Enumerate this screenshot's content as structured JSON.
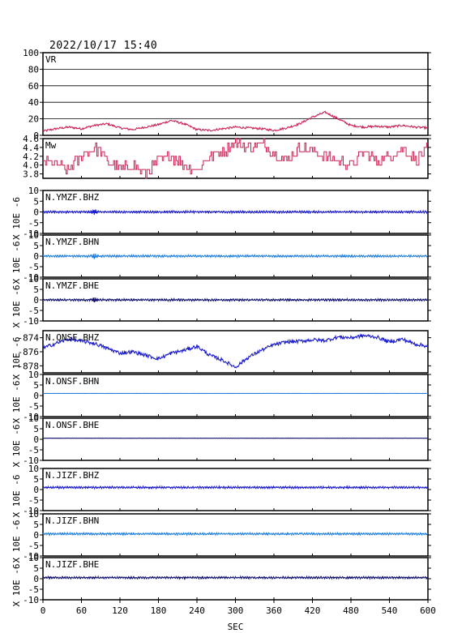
{
  "timestamp": "2022/10/17  15:40",
  "xlabel": "SEC",
  "ylabel_unit": "X 10E -6",
  "colors": {
    "vr": "#cc2255",
    "mw": "#cc2255",
    "bhz": "#1a1acc",
    "bhn": "#2080e0",
    "bhe": "#101070"
  },
  "chart_data": [
    {
      "type": "line",
      "panel": "VR",
      "title": "VR",
      "ylim": [
        0,
        100
      ],
      "yticks": [
        "100",
        "80",
        "60",
        "40",
        "20",
        "0"
      ],
      "grid": true,
      "x": [
        0,
        20,
        40,
        60,
        80,
        100,
        120,
        140,
        160,
        180,
        200,
        220,
        240,
        260,
        280,
        300,
        320,
        340,
        360,
        380,
        400,
        420,
        440,
        460,
        480,
        500,
        520,
        540,
        560,
        580,
        600
      ],
      "y": [
        5,
        8,
        10,
        8,
        12,
        14,
        9,
        7,
        10,
        13,
        18,
        14,
        7,
        6,
        8,
        10,
        9,
        8,
        6,
        9,
        14,
        22,
        28,
        20,
        12,
        10,
        11,
        10,
        12,
        10,
        9
      ]
    },
    {
      "type": "line",
      "panel": "Mw",
      "title": "Mw",
      "ylim": [
        3.7,
        4.6
      ],
      "yticks": [
        "4.6",
        "4.4",
        "4.2",
        "4.0",
        "3.8"
      ],
      "x": [
        0,
        20,
        40,
        60,
        80,
        100,
        120,
        140,
        160,
        180,
        200,
        220,
        240,
        260,
        280,
        300,
        320,
        340,
        360,
        380,
        400,
        420,
        440,
        460,
        480,
        500,
        520,
        540,
        560,
        580,
        600
      ],
      "y": [
        4.1,
        4.0,
        3.9,
        4.2,
        4.4,
        4.1,
        3.9,
        4.0,
        3.8,
        4.1,
        4.2,
        4.0,
        3.9,
        4.2,
        4.3,
        4.5,
        4.4,
        4.5,
        4.3,
        4.1,
        4.4,
        4.3,
        4.2,
        4.1,
        4.0,
        4.3,
        4.1,
        4.2,
        4.4,
        4.1,
        4.4
      ]
    },
    {
      "type": "line",
      "panel": "trace",
      "title": "N.YMZF.BHZ",
      "ylim": [
        -10,
        10
      ],
      "yticks": [
        "10",
        "5",
        "0",
        "-5",
        "-10"
      ],
      "color": "bhz",
      "amp": 0.5,
      "burst_x": 80
    },
    {
      "type": "line",
      "panel": "trace",
      "title": "N.YMZF.BHN",
      "ylim": [
        -10,
        10
      ],
      "yticks": [
        "10",
        "5",
        "0",
        "-5",
        "-10"
      ],
      "color": "bhn",
      "amp": 0.5,
      "burst_x": 80
    },
    {
      "type": "line",
      "panel": "trace",
      "title": "N.YMZF.BHE",
      "ylim": [
        -10,
        10
      ],
      "yticks": [
        "10",
        "5",
        "0",
        "-5",
        "-10"
      ],
      "color": "bhe",
      "amp": 0.5,
      "burst_x": 80
    },
    {
      "type": "line",
      "panel": "trace",
      "title": "N.ONSF.BHZ",
      "ylim": [
        -879,
        -873
      ],
      "yticks": [
        "-874",
        "-876",
        "-878"
      ],
      "ytick_values": [
        -874,
        -876,
        -878
      ],
      "color": "bhz",
      "x": [
        0,
        20,
        40,
        60,
        80,
        100,
        120,
        140,
        160,
        180,
        200,
        220,
        240,
        260,
        280,
        300,
        320,
        340,
        360,
        380,
        400,
        420,
        440,
        460,
        480,
        500,
        520,
        540,
        560,
        580,
        600
      ],
      "y": [
        -875.5,
        -874.8,
        -874.2,
        -874.5,
        -874.8,
        -875.5,
        -876.2,
        -876.0,
        -876.5,
        -877.0,
        -876.2,
        -875.8,
        -875.2,
        -876.5,
        -877.2,
        -878.2,
        -876.8,
        -875.8,
        -875.0,
        -874.6,
        -874.5,
        -874.3,
        -874.4,
        -873.9,
        -874.0,
        -873.7,
        -873.9,
        -874.6,
        -874.2,
        -874.9,
        -875.2
      ],
      "amp": 0.5
    },
    {
      "type": "line",
      "panel": "trace",
      "title": "N.ONSF.BHN",
      "ylim": [
        -10,
        10
      ],
      "yticks": [
        "10",
        "5",
        "0",
        "-5",
        "-10"
      ],
      "color": "bhn",
      "amp": 0.05,
      "offset": 1
    },
    {
      "type": "line",
      "panel": "trace",
      "title": "N.ONSF.BHE",
      "ylim": [
        -10,
        10
      ],
      "yticks": [
        "10",
        "5",
        "0",
        "-5",
        "-10"
      ],
      "color": "bhe",
      "amp": 0.05,
      "offset": 0.5
    },
    {
      "type": "line",
      "panel": "trace",
      "title": "N.JIZF.BHZ",
      "ylim": [
        -10,
        10
      ],
      "yticks": [
        "10",
        "5",
        "0",
        "-5",
        "-10"
      ],
      "color": "bhz",
      "amp": 0.5,
      "offset": 1
    },
    {
      "type": "line",
      "panel": "trace",
      "title": "N.JIZF.BHN",
      "ylim": [
        -10,
        10
      ],
      "yticks": [
        "10",
        "5",
        "0",
        "-5",
        "-10"
      ],
      "color": "bhn",
      "amp": 0.5,
      "offset": 0.5
    },
    {
      "type": "line",
      "panel": "trace",
      "title": "N.JIZF.BHE",
      "ylim": [
        -10,
        10
      ],
      "yticks": [
        "10",
        "5",
        "0",
        "-5",
        "-10"
      ],
      "color": "bhe",
      "amp": 0.5,
      "offset": 0.5
    }
  ],
  "xaxis": {
    "xlim": [
      0,
      600
    ],
    "ticks": [
      "0",
      "60",
      "120",
      "180",
      "240",
      "300",
      "360",
      "420",
      "480",
      "540",
      "600"
    ],
    "tick_values": [
      0,
      60,
      120,
      180,
      240,
      300,
      360,
      420,
      480,
      540,
      600
    ]
  }
}
